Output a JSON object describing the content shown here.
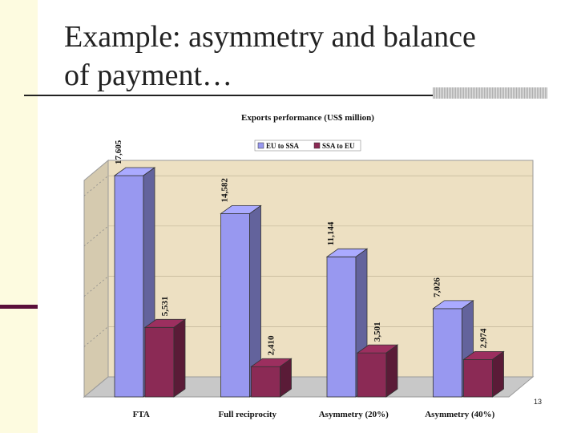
{
  "slide": {
    "title": "Example: asymmetry and balance\nof payment…",
    "page_number": "13"
  },
  "colors": {
    "series_eu": "#9898f0",
    "series_ssa": "#8b2a55",
    "plot_background": "#ede0c2",
    "accent_bar": "#5a0f3a"
  },
  "chart_data": {
    "type": "bar",
    "title": "Exports performance (US$ million)",
    "categories": [
      "FTA",
      "Full reciprocity",
      "Asymmetry (20%)",
      "Asymmetry (40%)"
    ],
    "series": [
      {
        "name": "EU to SSA",
        "values": [
          17605,
          14582,
          11144,
          7026
        ],
        "labels": [
          "17,605",
          "14,582",
          "11,144",
          "7,026"
        ]
      },
      {
        "name": "SSA to EU",
        "values": [
          5531,
          2410,
          3501,
          2974
        ],
        "labels": [
          "5,531",
          "2,410",
          "3,501",
          "2,974"
        ]
      }
    ],
    "ylim": [
      0,
      20000
    ],
    "grid": true,
    "legend_position": "top",
    "style": "3d"
  }
}
